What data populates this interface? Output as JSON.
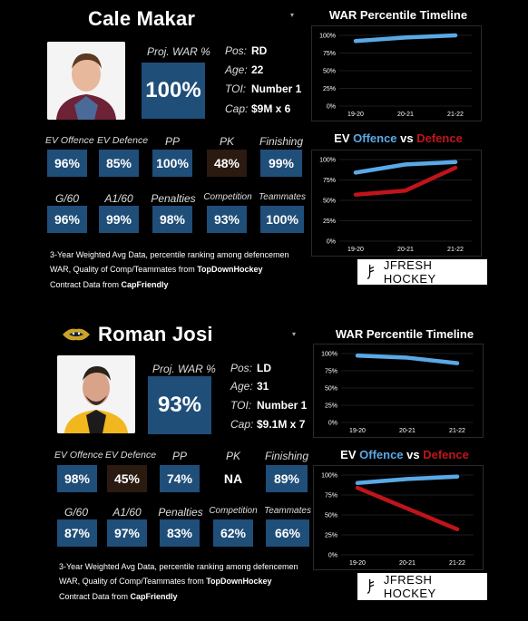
{
  "players": [
    {
      "name": "Cale Makar",
      "photo_icon": "player-headshot-avalanche",
      "team_logo_icon": "",
      "proj_war_label": "Proj. WAR %",
      "proj_war_value": "100%",
      "info": [
        {
          "label": "Pos:",
          "value": "RD"
        },
        {
          "label": "Age:",
          "value": "22"
        },
        {
          "label": "TOI:",
          "value": "Number 1"
        },
        {
          "label": "Cap:",
          "value": "$9M x 6"
        }
      ],
      "stats_row1": [
        {
          "label": "EV Offence",
          "value": "96%",
          "style": "blue"
        },
        {
          "label": "EV Defence",
          "value": "85%",
          "style": "blue"
        },
        {
          "label": "PP",
          "value": "100%",
          "style": "blue"
        },
        {
          "label": "PK",
          "value": "48%",
          "style": "dark"
        },
        {
          "label": "Finishing",
          "value": "99%",
          "style": "blue"
        }
      ],
      "stats_row2": [
        {
          "label": "G/60",
          "value": "96%",
          "style": "blue"
        },
        {
          "label": "A1/60",
          "value": "99%",
          "style": "blue"
        },
        {
          "label": "Penalties",
          "value": "98%",
          "style": "blue"
        },
        {
          "label": "Competition",
          "value": "93%",
          "style": "blue"
        },
        {
          "label": "Teammates",
          "value": "100%",
          "style": "blue"
        }
      ],
      "notes": {
        "line1": "3-Year Weighted Avg Data, percentile ranking among defencemen",
        "line2_prefix": "WAR, Quality of Comp/Teammates from ",
        "line2_bold": "TopDownHockey",
        "line3_prefix": "Contract Data from ",
        "line3_bold": "CapFriendly"
      }
    },
    {
      "name": "Roman Josi",
      "photo_icon": "player-headshot-predators",
      "team_logo_icon": "predators-logo-icon",
      "proj_war_label": "Proj. WAR %",
      "proj_war_value": "93%",
      "info": [
        {
          "label": "Pos:",
          "value": "LD"
        },
        {
          "label": "Age:",
          "value": "31"
        },
        {
          "label": "TOI:",
          "value": "Number 1"
        },
        {
          "label": "Cap:",
          "value": "$9.1M x 7"
        }
      ],
      "stats_row1": [
        {
          "label": "EV Offence",
          "value": "98%",
          "style": "blue"
        },
        {
          "label": "EV Defence",
          "value": "45%",
          "style": "dark"
        },
        {
          "label": "PP",
          "value": "74%",
          "style": "blue"
        },
        {
          "label": "PK",
          "value": "NA",
          "style": "na"
        },
        {
          "label": "Finishing",
          "value": "89%",
          "style": "blue"
        }
      ],
      "stats_row2": [
        {
          "label": "G/60",
          "value": "87%",
          "style": "blue"
        },
        {
          "label": "A1/60",
          "value": "97%",
          "style": "blue"
        },
        {
          "label": "Penalties",
          "value": "83%",
          "style": "blue"
        },
        {
          "label": "Competition",
          "value": "62%",
          "style": "blue"
        },
        {
          "label": "Teammates",
          "value": "66%",
          "style": "blue"
        }
      ],
      "notes": {
        "line1": "3-Year Weighted Avg Data, percentile ranking among defencemen",
        "line2_prefix": "WAR, Quality of Comp/Teammates from ",
        "line2_bold": "TopDownHockey",
        "line3_prefix": "Contract Data from ",
        "line3_bold": "CapFriendly"
      }
    }
  ],
  "brand": {
    "text": "JFRESH HOCKEY",
    "icon": "jfresh-logo-icon"
  },
  "colors": {
    "tile_blue": "#1f4e79",
    "tile_dark": "#2a1a10",
    "offence": "#5aa9e6",
    "defence": "#c0141b"
  },
  "chart_data": [
    {
      "type": "line",
      "title": "WAR Percentile Timeline",
      "x": [
        "19-20",
        "20-21",
        "21-22"
      ],
      "ylim": [
        0,
        100
      ],
      "yticks": [
        "0%",
        "25%",
        "50%",
        "75%",
        "100%"
      ],
      "series": [
        {
          "values": [
            92,
            97,
            100
          ],
          "color": "#5aa9e6"
        }
      ]
    },
    {
      "type": "line",
      "title_prefix": "EV ",
      "title_off": "Offence",
      "title_vs": " vs ",
      "title_def": "Defence",
      "x": [
        "19-20",
        "20-21",
        "21-22"
      ],
      "ylim": [
        0,
        100
      ],
      "yticks": [
        "0%",
        "25%",
        "50%",
        "75%",
        "100%"
      ],
      "series": [
        {
          "values": [
            84,
            94,
            97
          ],
          "color": "#5aa9e6"
        },
        {
          "values": [
            57,
            62,
            90
          ],
          "color": "#c0141b"
        }
      ]
    },
    {
      "type": "line",
      "title": "WAR Percentile Timeline",
      "x": [
        "19-20",
        "20-21",
        "21-22"
      ],
      "ylim": [
        0,
        100
      ],
      "yticks": [
        "0%",
        "25%",
        "50%",
        "75%",
        "100%"
      ],
      "series": [
        {
          "values": [
            97,
            94,
            86
          ],
          "color": "#5aa9e6"
        }
      ]
    },
    {
      "type": "line",
      "title_prefix": "EV ",
      "title_off": "Offence",
      "title_vs": " vs ",
      "title_def": "Defence",
      "x": [
        "19-20",
        "20-21",
        "21-22"
      ],
      "ylim": [
        0,
        100
      ],
      "yticks": [
        "0%",
        "25%",
        "50%",
        "75%",
        "100%"
      ],
      "series": [
        {
          "values": [
            90,
            95,
            98
          ],
          "color": "#5aa9e6"
        },
        {
          "values": [
            84,
            58,
            32
          ],
          "color": "#c0141b"
        }
      ]
    }
  ]
}
